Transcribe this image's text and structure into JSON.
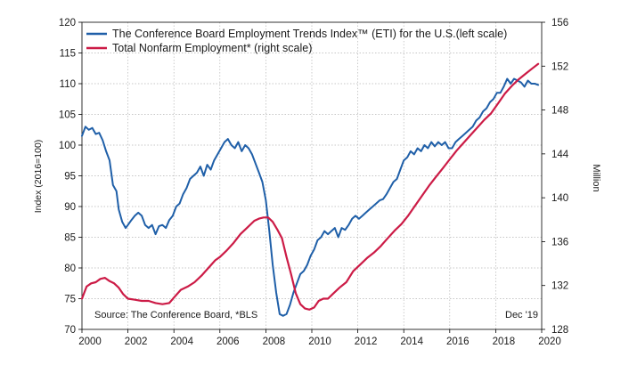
{
  "chart_data": {
    "type": "line",
    "title": "",
    "xlabel": "",
    "ylabel_left": "Index (2016=100)",
    "ylabel_right": "Million",
    "xlim": [
      2000,
      2020
    ],
    "ylim_left": [
      70,
      120
    ],
    "ylim_right": [
      128,
      156
    ],
    "x_ticks": [
      "2000",
      "2002",
      "2004",
      "2006",
      "2008",
      "2010",
      "2012",
      "2014",
      "2016",
      "2018",
      "2020"
    ],
    "y_ticks_left": [
      "70",
      "75",
      "80",
      "85",
      "90",
      "95",
      "100",
      "105",
      "110",
      "115",
      "120"
    ],
    "y_ticks_right": [
      "128",
      "132",
      "136",
      "140",
      "144",
      "148",
      "152",
      "156"
    ],
    "grid": true,
    "legend_position": "top-left",
    "series": [
      {
        "name": "The Conference Board Employment Trends Index™ (ETI) for the U.S.(left scale)",
        "color": "#1f5fa8",
        "axis": "left",
        "x": [
          2000.0,
          2000.15,
          2000.3,
          2000.45,
          2000.6,
          2000.75,
          2000.9,
          2001.05,
          2001.2,
          2001.35,
          2001.5,
          2001.6,
          2001.75,
          2001.9,
          2002.0,
          2002.15,
          2002.3,
          2002.45,
          2002.6,
          2002.75,
          2002.9,
          2003.05,
          2003.2,
          2003.35,
          2003.5,
          2003.65,
          2003.8,
          2003.95,
          2004.1,
          2004.25,
          2004.4,
          2004.55,
          2004.7,
          2004.85,
          2005.0,
          2005.15,
          2005.3,
          2005.45,
          2005.6,
          2005.75,
          2005.9,
          2006.05,
          2006.2,
          2006.35,
          2006.5,
          2006.65,
          2006.8,
          2006.95,
          2007.1,
          2007.25,
          2007.4,
          2007.55,
          2007.7,
          2007.85,
          2008.0,
          2008.15,
          2008.3,
          2008.45,
          2008.6,
          2008.75,
          2008.9,
          2009.05,
          2009.2,
          2009.35,
          2009.5,
          2009.65,
          2009.8,
          2009.95,
          2010.1,
          2010.25,
          2010.4,
          2010.55,
          2010.7,
          2010.85,
          2011.0,
          2011.15,
          2011.3,
          2011.45,
          2011.6,
          2011.75,
          2011.9,
          2012.05,
          2012.2,
          2012.35,
          2012.5,
          2012.65,
          2012.8,
          2012.95,
          2013.1,
          2013.25,
          2013.4,
          2013.55,
          2013.7,
          2013.85,
          2014.0,
          2014.15,
          2014.3,
          2014.45,
          2014.6,
          2014.75,
          2014.9,
          2015.05,
          2015.2,
          2015.35,
          2015.5,
          2015.65,
          2015.8,
          2015.95,
          2016.1,
          2016.25,
          2016.4,
          2016.55,
          2016.7,
          2016.85,
          2017.0,
          2017.15,
          2017.3,
          2017.45,
          2017.6,
          2017.75,
          2017.9,
          2018.05,
          2018.2,
          2018.35,
          2018.5,
          2018.65,
          2018.8,
          2018.95,
          2019.1,
          2019.25,
          2019.4,
          2019.55,
          2019.7,
          2019.85
        ],
        "values": [
          101.5,
          103.0,
          102.5,
          102.8,
          101.8,
          102.0,
          100.8,
          99.0,
          97.5,
          93.5,
          92.5,
          89.5,
          87.5,
          86.5,
          87.0,
          87.8,
          88.5,
          89.0,
          88.5,
          87.0,
          86.5,
          87.0,
          85.5,
          86.8,
          87.0,
          86.5,
          87.8,
          88.5,
          90.0,
          90.5,
          92.0,
          93.0,
          94.5,
          95.0,
          95.5,
          96.5,
          95.0,
          96.8,
          96.0,
          97.5,
          98.5,
          99.5,
          100.5,
          101.0,
          100.0,
          99.5,
          100.5,
          99.0,
          100.0,
          99.5,
          98.5,
          97.0,
          95.5,
          94.0,
          91.0,
          86.0,
          80.5,
          76.0,
          72.5,
          72.2,
          72.5,
          74.0,
          76.0,
          77.5,
          79.0,
          79.5,
          80.5,
          82.0,
          83.0,
          84.5,
          85.0,
          86.0,
          85.5,
          86.0,
          86.5,
          85.0,
          86.5,
          86.2,
          87.0,
          88.0,
          88.5,
          88.0,
          88.5,
          89.0,
          89.5,
          90.0,
          90.5,
          91.0,
          91.2,
          92.0,
          93.0,
          94.0,
          94.5,
          96.0,
          97.5,
          98.0,
          99.0,
          98.5,
          99.5,
          99.0,
          100.0,
          99.5,
          100.5,
          99.8,
          100.5,
          100.0,
          100.5,
          99.5,
          99.5,
          100.5,
          101.0,
          101.5,
          102.0,
          102.5,
          103.0,
          104.0,
          104.5,
          105.5,
          106.0,
          107.0,
          107.5,
          108.5,
          108.5,
          109.5,
          110.8,
          110.0,
          110.8,
          110.5,
          110.2,
          109.5,
          110.5,
          110.0,
          110.0,
          109.8
        ]
      },
      {
        "name": "Total Nonfarm Employment* (right scale)",
        "color": "#cc1b46",
        "axis": "right",
        "x": [
          2000.0,
          2000.2,
          2000.4,
          2000.6,
          2000.8,
          2001.0,
          2001.2,
          2001.4,
          2001.6,
          2001.8,
          2002.0,
          2002.3,
          2002.6,
          2002.9,
          2003.2,
          2003.5,
          2003.8,
          2004.0,
          2004.3,
          2004.6,
          2004.9,
          2005.2,
          2005.5,
          2005.8,
          2006.0,
          2006.3,
          2006.6,
          2006.9,
          2007.2,
          2007.5,
          2007.7,
          2007.9,
          2008.1,
          2008.3,
          2008.5,
          2008.7,
          2008.9,
          2009.1,
          2009.3,
          2009.5,
          2009.7,
          2009.9,
          2010.1,
          2010.3,
          2010.5,
          2010.7,
          2010.9,
          2011.2,
          2011.5,
          2011.8,
          2012.1,
          2012.4,
          2012.7,
          2013.0,
          2013.3,
          2013.6,
          2013.9,
          2014.2,
          2014.5,
          2014.8,
          2015.1,
          2015.4,
          2015.7,
          2016.0,
          2016.3,
          2016.6,
          2016.9,
          2017.2,
          2017.5,
          2017.8,
          2018.1,
          2018.4,
          2018.7,
          2019.0,
          2019.3,
          2019.6,
          2019.85
        ],
        "values": [
          130.8,
          131.9,
          132.2,
          132.3,
          132.6,
          132.7,
          132.4,
          132.2,
          131.8,
          131.2,
          130.8,
          130.7,
          130.6,
          130.6,
          130.4,
          130.3,
          130.4,
          130.9,
          131.6,
          131.9,
          132.3,
          132.9,
          133.6,
          134.3,
          134.6,
          135.2,
          135.9,
          136.7,
          137.3,
          137.9,
          138.1,
          138.2,
          138.2,
          137.8,
          137.1,
          136.3,
          134.6,
          133.0,
          131.3,
          130.3,
          129.9,
          129.8,
          130.0,
          130.6,
          130.8,
          130.8,
          131.2,
          131.8,
          132.3,
          133.3,
          133.9,
          134.5,
          135.0,
          135.6,
          136.3,
          137.0,
          137.6,
          138.4,
          139.3,
          140.2,
          141.1,
          141.9,
          142.7,
          143.5,
          144.3,
          145.0,
          145.7,
          146.4,
          147.1,
          147.7,
          148.6,
          149.5,
          150.2,
          150.8,
          151.3,
          151.8,
          152.2
        ]
      }
    ],
    "annotations": {
      "source": "Source: The Conference Board, *BLS",
      "date": "Dec '19"
    }
  }
}
